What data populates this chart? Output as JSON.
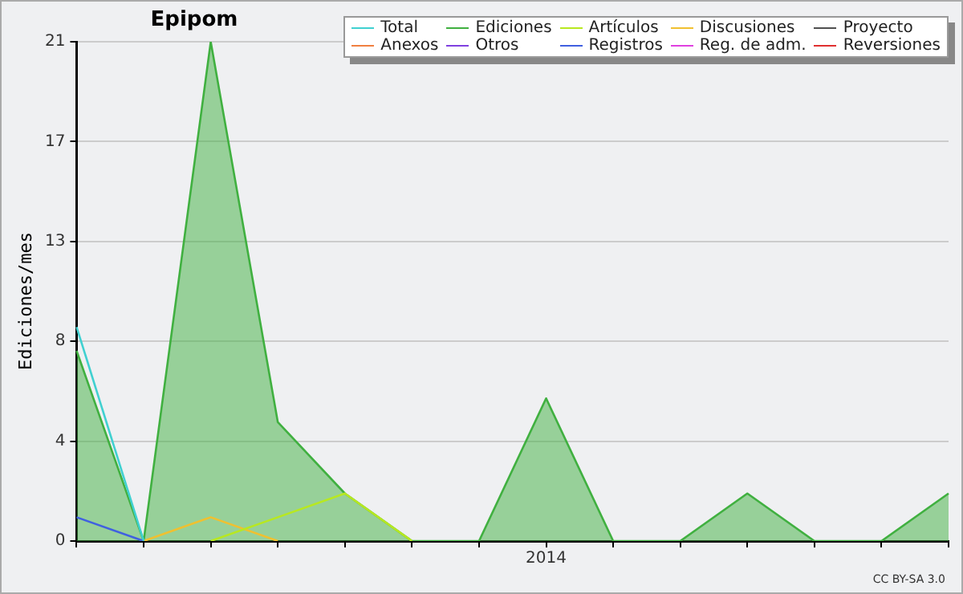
{
  "chart_data": {
    "type": "line",
    "title": "Epipom",
    "ylabel": "Ediciones/mes",
    "categories": [
      null,
      null,
      null,
      null,
      null,
      null,
      null,
      "2014",
      null,
      null,
      null,
      null,
      null,
      null
    ],
    "ylim": [
      0,
      21
    ],
    "yticks": [
      0,
      {
        "value": 4.2,
        "label": "4"
      },
      {
        "value": 8.4,
        "label": "8"
      },
      {
        "value": 12.6,
        "label": "13"
      },
      {
        "value": 16.8,
        "label": "17"
      },
      21
    ],
    "grid": "y",
    "legend": "top right",
    "marker": "none",
    "line_style": "solid",
    "annotations": [
      "CC BY-SA 3.0"
    ],
    "series": [
      {
        "name": "Total",
        "color": "#40d0d0",
        "values": [
          9,
          0,
          null,
          null,
          null,
          null,
          null,
          null,
          null,
          null,
          null,
          null,
          null,
          null
        ]
      },
      {
        "name": "Ediciones",
        "type": "area",
        "color": "#40b040",
        "values": [
          8,
          0,
          21,
          5,
          2,
          0,
          0,
          6,
          0,
          0,
          2,
          0,
          0,
          2
        ]
      },
      {
        "name": "Artículos",
        "color": "#b8e820",
        "values": [
          null,
          null,
          0,
          1,
          2,
          0,
          null,
          null,
          null,
          null,
          null,
          null,
          null,
          null
        ]
      },
      {
        "name": "Discusiones",
        "color": "#f0c030",
        "values": [
          null,
          0,
          1,
          0,
          null,
          null,
          null,
          null,
          null,
          null,
          null,
          null,
          null,
          null
        ]
      },
      {
        "name": "Proyecto",
        "color": "#505050",
        "values": [
          null,
          null,
          null,
          null,
          null,
          null,
          null,
          null,
          null,
          null,
          null,
          null,
          null,
          null
        ]
      },
      {
        "name": "Anexos",
        "color": "#f08040",
        "values": [
          null,
          null,
          null,
          null,
          null,
          null,
          null,
          null,
          null,
          null,
          null,
          null,
          null,
          null
        ]
      },
      {
        "name": "Otros",
        "color": "#8040e0",
        "values": [
          null,
          null,
          null,
          null,
          null,
          null,
          null,
          null,
          null,
          null,
          null,
          null,
          null,
          null
        ]
      },
      {
        "name": "Registros",
        "color": "#4060e0",
        "values": [
          1,
          0,
          null,
          null,
          null,
          null,
          null,
          null,
          null,
          null,
          null,
          null,
          null,
          null
        ]
      },
      {
        "name": "Reg. de adm.",
        "color": "#e040e0",
        "values": [
          null,
          null,
          null,
          null,
          null,
          null,
          null,
          null,
          null,
          null,
          null,
          null,
          null,
          null
        ]
      },
      {
        "name": "Reversiones",
        "color": "#e03030",
        "values": [
          null,
          null,
          null,
          null,
          null,
          null,
          null,
          null,
          null,
          null,
          null,
          null,
          null,
          null
        ]
      }
    ]
  }
}
